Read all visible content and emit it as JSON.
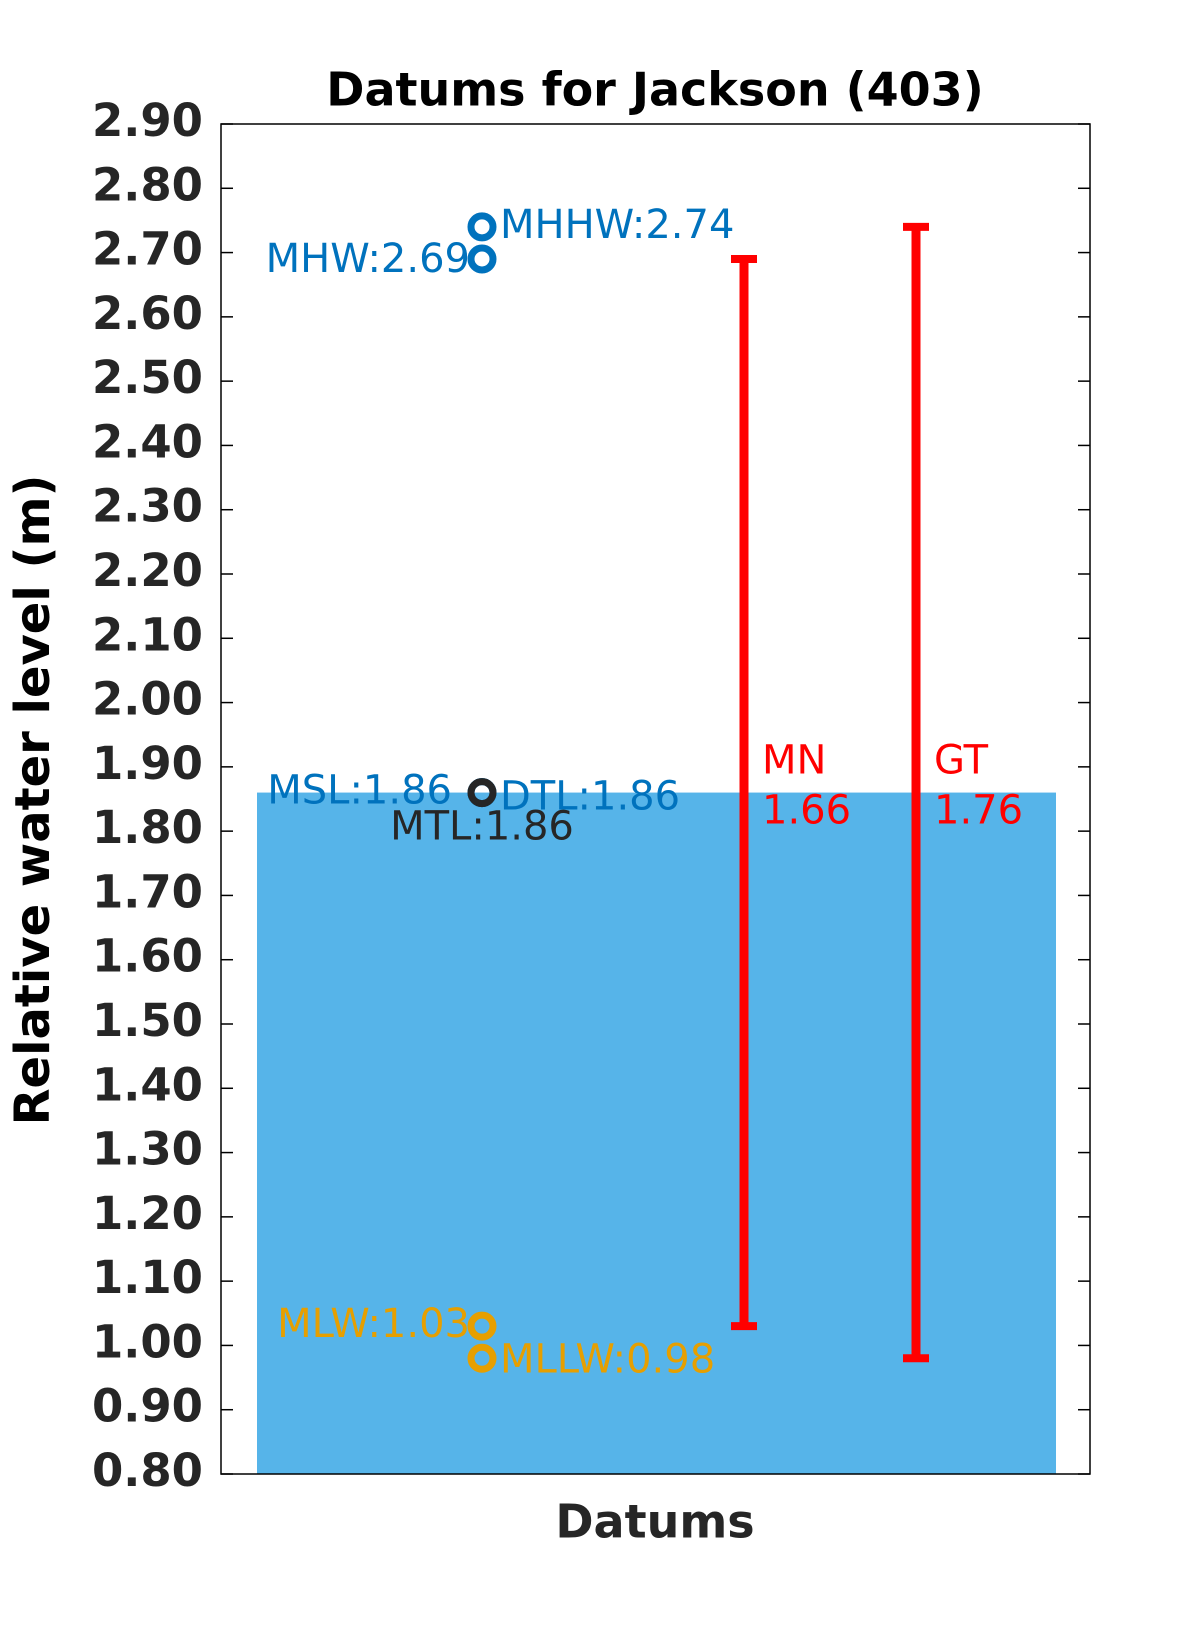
{
  "chart_data": {
    "type": "datums",
    "title": "Datums for Jackson (403)",
    "ylabel": "Relative water level (m)",
    "xlabel": "Datums",
    "ylim": [
      0.8,
      2.9
    ],
    "yticks": [
      {
        "value": 0.8,
        "label": "0.80"
      },
      {
        "value": 0.9,
        "label": "0.90"
      },
      {
        "value": 1.0,
        "label": "1.00"
      },
      {
        "value": 1.1,
        "label": "1.10"
      },
      {
        "value": 1.2,
        "label": "1.20"
      },
      {
        "value": 1.3,
        "label": "1.30"
      },
      {
        "value": 1.4,
        "label": "1.40"
      },
      {
        "value": 1.5,
        "label": "1.50"
      },
      {
        "value": 1.6,
        "label": "1.60"
      },
      {
        "value": 1.7,
        "label": "1.70"
      },
      {
        "value": 1.8,
        "label": "1.80"
      },
      {
        "value": 1.9,
        "label": "1.90"
      },
      {
        "value": 2.0,
        "label": "2.00"
      },
      {
        "value": 2.1,
        "label": "2.10"
      },
      {
        "value": 2.2,
        "label": "2.20"
      },
      {
        "value": 2.3,
        "label": "2.30"
      },
      {
        "value": 2.4,
        "label": "2.40"
      },
      {
        "value": 2.5,
        "label": "2.50"
      },
      {
        "value": 2.6,
        "label": "2.60"
      },
      {
        "value": 2.7,
        "label": "2.70"
      },
      {
        "value": 2.8,
        "label": "2.80"
      },
      {
        "value": 2.9,
        "label": "2.90"
      }
    ],
    "bar": {
      "value": 1.86,
      "color": "#56b4e9"
    },
    "points": [
      {
        "label": "MHHW:2.74",
        "value": 2.74,
        "color": "#0072bd"
      },
      {
        "label": "MHW:2.69",
        "value": 2.69,
        "color": "#0072bd"
      },
      {
        "label": "MSL:1.86",
        "value": 1.86,
        "color": "#0072bd"
      },
      {
        "label": "DTL:1.86",
        "value": 1.86,
        "color": "#0072bd"
      },
      {
        "label": "MTL:1.86",
        "value": 1.86,
        "color": "#262626"
      },
      {
        "label": "MLW:1.03",
        "value": 1.03,
        "color": "#e69f00"
      },
      {
        "label": "MLLW:0.98",
        "value": 0.98,
        "color": "#e69f00"
      }
    ],
    "ranges": [
      {
        "name": "MN",
        "low": 1.03,
        "high": 2.69,
        "value": 1.66,
        "color": "#ff0000"
      },
      {
        "name": "GT",
        "low": 0.98,
        "high": 2.74,
        "value": 1.76,
        "color": "#ff0000"
      }
    ]
  }
}
